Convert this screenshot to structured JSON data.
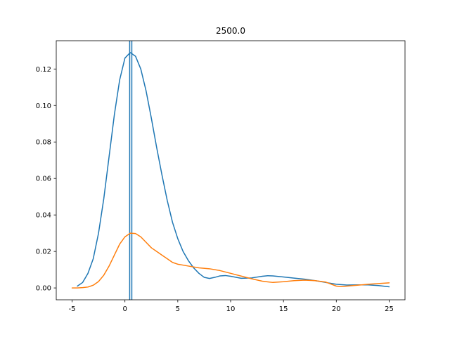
{
  "chart_data": {
    "type": "line",
    "title": "2500.0",
    "xlabel": "",
    "ylabel": "",
    "xlim": [
      -6.5,
      26.5
    ],
    "ylim": [
      -0.0065,
      0.1355
    ],
    "xticks": [
      -5,
      0,
      5,
      10,
      15,
      20,
      25
    ],
    "yticks": [
      0.0,
      0.02,
      0.04,
      0.06,
      0.08,
      0.1,
      0.12
    ],
    "ytick_labels": [
      "0.00",
      "0.02",
      "0.04",
      "0.06",
      "0.08",
      "0.10",
      "0.12"
    ],
    "grid": false,
    "legend": "none",
    "vlines": [
      {
        "x": 0.45,
        "color": "#1f77b4"
      },
      {
        "x": 0.65,
        "color": "#1f77b4"
      }
    ],
    "series": [
      {
        "color": "#1f77b4",
        "points": [
          [
            -4.5,
            0.001
          ],
          [
            -4.0,
            0.003
          ],
          [
            -3.5,
            0.008
          ],
          [
            -3.0,
            0.016
          ],
          [
            -2.5,
            0.03
          ],
          [
            -2.0,
            0.049
          ],
          [
            -1.5,
            0.072
          ],
          [
            -1.0,
            0.095
          ],
          [
            -0.5,
            0.114
          ],
          [
            0.0,
            0.126
          ],
          [
            0.5,
            0.129
          ],
          [
            1.0,
            0.127
          ],
          [
            1.5,
            0.12
          ],
          [
            2.0,
            0.108
          ],
          [
            2.5,
            0.093
          ],
          [
            3.0,
            0.077
          ],
          [
            3.5,
            0.062
          ],
          [
            4.0,
            0.048
          ],
          [
            4.5,
            0.036
          ],
          [
            5.0,
            0.027
          ],
          [
            5.5,
            0.02
          ],
          [
            6.0,
            0.015
          ],
          [
            6.5,
            0.011
          ],
          [
            7.0,
            0.008
          ],
          [
            7.5,
            0.0058
          ],
          [
            8.0,
            0.0052
          ],
          [
            8.5,
            0.0058
          ],
          [
            9.0,
            0.0066
          ],
          [
            9.5,
            0.0068
          ],
          [
            10.0,
            0.0064
          ],
          [
            11.0,
            0.0053
          ],
          [
            12.0,
            0.0055
          ],
          [
            13.0,
            0.0064
          ],
          [
            13.5,
            0.0067
          ],
          [
            14.0,
            0.0066
          ],
          [
            15.0,
            0.006
          ],
          [
            16.0,
            0.0054
          ],
          [
            17.0,
            0.0048
          ],
          [
            18.0,
            0.004
          ],
          [
            19.0,
            0.003
          ],
          [
            20.0,
            0.002
          ],
          [
            21.0,
            0.0016
          ],
          [
            22.0,
            0.0017
          ],
          [
            23.0,
            0.0017
          ],
          [
            24.0,
            0.0013
          ],
          [
            25.0,
            0.0006
          ]
        ]
      },
      {
        "color": "#ff7f0e",
        "points": [
          [
            -5.0,
            0.0
          ],
          [
            -4.5,
            0.0
          ],
          [
            -4.0,
            0.0002
          ],
          [
            -3.5,
            0.0005
          ],
          [
            -3.0,
            0.0015
          ],
          [
            -2.5,
            0.0035
          ],
          [
            -2.0,
            0.007
          ],
          [
            -1.5,
            0.012
          ],
          [
            -1.0,
            0.018
          ],
          [
            -0.5,
            0.024
          ],
          [
            0.0,
            0.028
          ],
          [
            0.5,
            0.03
          ],
          [
            1.0,
            0.0298
          ],
          [
            1.5,
            0.028
          ],
          [
            2.0,
            0.025
          ],
          [
            2.5,
            0.022
          ],
          [
            3.0,
            0.02
          ],
          [
            3.5,
            0.018
          ],
          [
            4.0,
            0.016
          ],
          [
            4.5,
            0.014
          ],
          [
            5.0,
            0.013
          ],
          [
            6.0,
            0.012
          ],
          [
            7.0,
            0.011
          ],
          [
            8.0,
            0.0105
          ],
          [
            9.0,
            0.0095
          ],
          [
            10.0,
            0.008
          ],
          [
            11.0,
            0.0065
          ],
          [
            12.0,
            0.005
          ],
          [
            13.0,
            0.0037
          ],
          [
            14.0,
            0.003
          ],
          [
            15.0,
            0.0034
          ],
          [
            16.0,
            0.004
          ],
          [
            17.0,
            0.0043
          ],
          [
            18.0,
            0.004
          ],
          [
            19.0,
            0.0032
          ],
          [
            20.0,
            0.001
          ],
          [
            20.5,
            0.0007
          ],
          [
            21.0,
            0.001
          ],
          [
            22.0,
            0.0015
          ],
          [
            23.0,
            0.002
          ],
          [
            24.0,
            0.0024
          ],
          [
            25.0,
            0.0028
          ]
        ]
      }
    ]
  }
}
